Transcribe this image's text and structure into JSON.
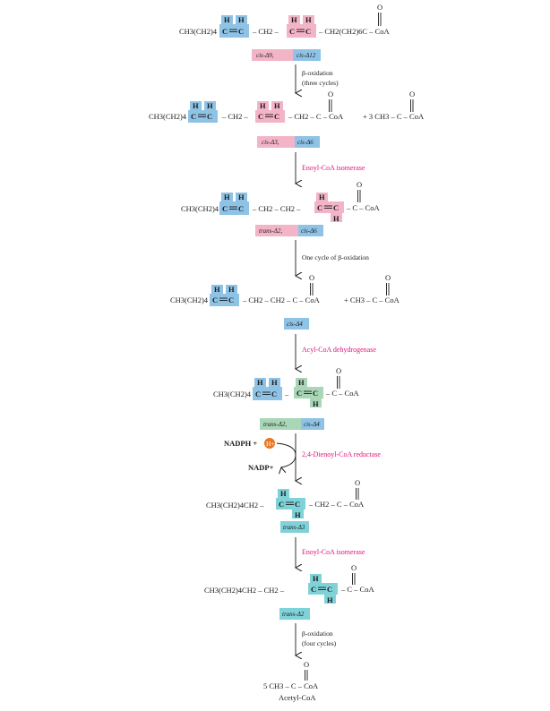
{
  "molecules": {
    "m1_left": "CH3(CH2)4",
    "m1_mid": "– CH2 –",
    "m1_right": "– CH2(CH2)6C – CoA",
    "m2_left": "CH3(CH2)4",
    "m2_mid": "– CH2 –",
    "m2_right": "– CH2 – C – CoA",
    "m2_plus": "+ 3 CH3 – C – CoA",
    "m3_left": "CH3(CH2)4",
    "m3_mid": "– CH2 – CH2 –",
    "m3_right": "– C – CoA",
    "m4_left": "CH3(CH2)4",
    "m4_mid": "– CH2 – CH2 – C – CoA",
    "m4_plus": "+ CH3 – C – CoA",
    "m5_left": "CH3(CH2)4",
    "m5_right": "– C – CoA",
    "m6_left": "CH3(CH2)4CH2 –",
    "m6_right": "– CH2 – C – CoA",
    "m7_left": "CH3(CH2)4CH2 – CH2 –",
    "m7_right": "– C – CoA",
    "m8": "5 CH3 – C – CoA",
    "m8_name": "Acetyl-CoA"
  },
  "labels": {
    "l1a": "cis-Δ9,",
    "l1b": "cis-Δ12",
    "l2a": "cis-Δ3,",
    "l2b": "cis-Δ6",
    "l3a": "trans-Δ2,",
    "l3b": "cis-Δ6",
    "l4": "cis-Δ4",
    "l5a": "trans-Δ2,",
    "l5b": "cis-Δ4",
    "l6": "trans-Δ3",
    "l7": "trans-Δ2"
  },
  "steps": {
    "s1a": "β-oxidation",
    "s1b": "(three cycles)",
    "s2": "Enoyl-CoA isomerase",
    "s3": "One cycle of β-oxidation",
    "s4": "Acyl-CoA dehydrogenase",
    "s5": "2,4-Dienoyl-CoA reductase",
    "s6": "Enoyl-CoA isomerase",
    "s7a": "β-oxidation",
    "s7b": "(four cycles)"
  },
  "cofactors": {
    "nadph": "NADPH +",
    "h": "H+",
    "nadp": "NADP+"
  },
  "atoms": {
    "H": "H",
    "C": "C",
    "O": "O",
    "dbl": "="
  },
  "colors": {
    "pink_box": "#f4b4c8",
    "blue_box": "#8fc3e6",
    "green_box": "#a9d6b7",
    "teal_box": "#7fd2d8",
    "enzyme_text": "#e0157a",
    "proton": "#e87722"
  }
}
